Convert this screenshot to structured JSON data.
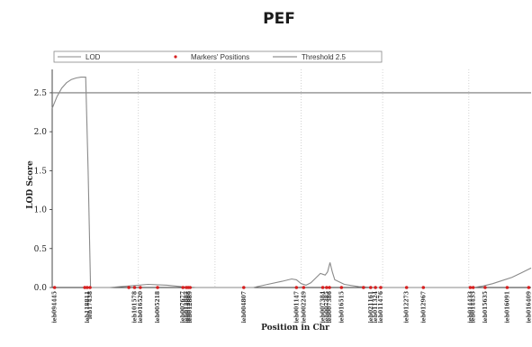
{
  "chart_data": {
    "type": "line",
    "title": "PEF",
    "xlabel": "Position in Chr",
    "ylabel": "LOD Score",
    "ylim": [
      0,
      2.8
    ],
    "xlim": [
      0,
      100
    ],
    "y_ticks": [
      "0.0",
      "0.5",
      "1.0",
      "1.5",
      "2.0",
      "2.5"
    ],
    "grid": true,
    "legend_position": "top",
    "legend": {
      "lod": "LOD",
      "markers": "Markers' Positions",
      "threshold": "Threshold 2.5"
    },
    "threshold": 2.5,
    "colors": {
      "lod": "#8a8a8a",
      "threshold": "#777777",
      "markers": "#d62020",
      "grid": "#c0c0c0"
    },
    "chromosome_boundaries": [
      18,
      34,
      52,
      69,
      87
    ],
    "series": [
      {
        "name": "LOD",
        "points": [
          [
            0,
            2.3
          ],
          [
            1,
            2.45
          ],
          [
            2,
            2.56
          ],
          [
            3,
            2.63
          ],
          [
            4,
            2.67
          ],
          [
            5,
            2.69
          ],
          [
            6,
            2.7
          ],
          [
            7,
            2.7
          ],
          [
            7.5,
            1.5
          ],
          [
            8,
            0.0
          ],
          [
            12,
            0.0
          ],
          [
            16,
            0.02
          ],
          [
            20,
            0.04
          ],
          [
            24,
            0.03
          ],
          [
            27,
            0.01
          ],
          [
            30,
            0.0
          ],
          [
            36,
            0.0
          ],
          [
            42,
            0.0
          ],
          [
            45,
            0.04
          ],
          [
            48,
            0.08
          ],
          [
            50,
            0.11
          ],
          [
            51,
            0.1
          ],
          [
            52,
            0.05
          ],
          [
            53,
            0.03
          ],
          [
            54,
            0.06
          ],
          [
            55,
            0.12
          ],
          [
            56,
            0.18
          ],
          [
            57,
            0.16
          ],
          [
            57.5,
            0.2
          ],
          [
            58,
            0.32
          ],
          [
            58.5,
            0.2
          ],
          [
            59,
            0.1
          ],
          [
            61,
            0.04
          ],
          [
            64,
            0.01
          ],
          [
            68,
            0.0
          ],
          [
            75,
            0.0
          ],
          [
            82,
            0.0
          ],
          [
            88,
            0.0
          ],
          [
            90,
            0.02
          ],
          [
            92,
            0.05
          ],
          [
            94,
            0.09
          ],
          [
            96,
            0.13
          ],
          [
            98,
            0.19
          ],
          [
            100,
            0.25
          ]
        ]
      }
    ],
    "markers": [
      {
        "x": 0.5,
        "label": "ieb094445"
      },
      {
        "x": 6.8,
        "label": ""
      },
      {
        "x": 7.3,
        "label": "ieb118811"
      },
      {
        "x": 7.9,
        "label": "ieb17438"
      },
      {
        "x": 16.0,
        "label": ""
      },
      {
        "x": 17.2,
        "label": "ieb101578"
      },
      {
        "x": 18.4,
        "label": "ieb016520"
      },
      {
        "x": 22.0,
        "label": "ieb005218"
      },
      {
        "x": 27.3,
        "label": "ieb007677"
      },
      {
        "x": 28.0,
        "label": "ieb012887"
      },
      {
        "x": 28.4,
        "label": "ieb012888"
      },
      {
        "x": 28.8,
        "label": "ieb012889"
      },
      {
        "x": 40.0,
        "label": "ieb004807"
      },
      {
        "x": 51.0,
        "label": "ieb001147"
      },
      {
        "x": 52.5,
        "label": "ieb002249"
      },
      {
        "x": 56.5,
        "label": "ieb007384"
      },
      {
        "x": 57.3,
        "label": "ieb007385"
      },
      {
        "x": 57.9,
        "label": "ieb007386"
      },
      {
        "x": 60.4,
        "label": "ieb016515"
      },
      {
        "x": 65.0,
        "label": ""
      },
      {
        "x": 66.5,
        "label": "ieb021161"
      },
      {
        "x": 67.5,
        "label": "ieb011324"
      },
      {
        "x": 68.6,
        "label": "ieb011476"
      },
      {
        "x": 74.0,
        "label": "ieb012273"
      },
      {
        "x": 77.5,
        "label": "ieb012967"
      },
      {
        "x": 87.3,
        "label": "ieb014433"
      },
      {
        "x": 87.9,
        "label": "ieb014435"
      },
      {
        "x": 90.4,
        "label": "ieb015635"
      },
      {
        "x": 95.0,
        "label": "ieb016091"
      },
      {
        "x": 99.5,
        "label": "ieb016409"
      }
    ]
  }
}
